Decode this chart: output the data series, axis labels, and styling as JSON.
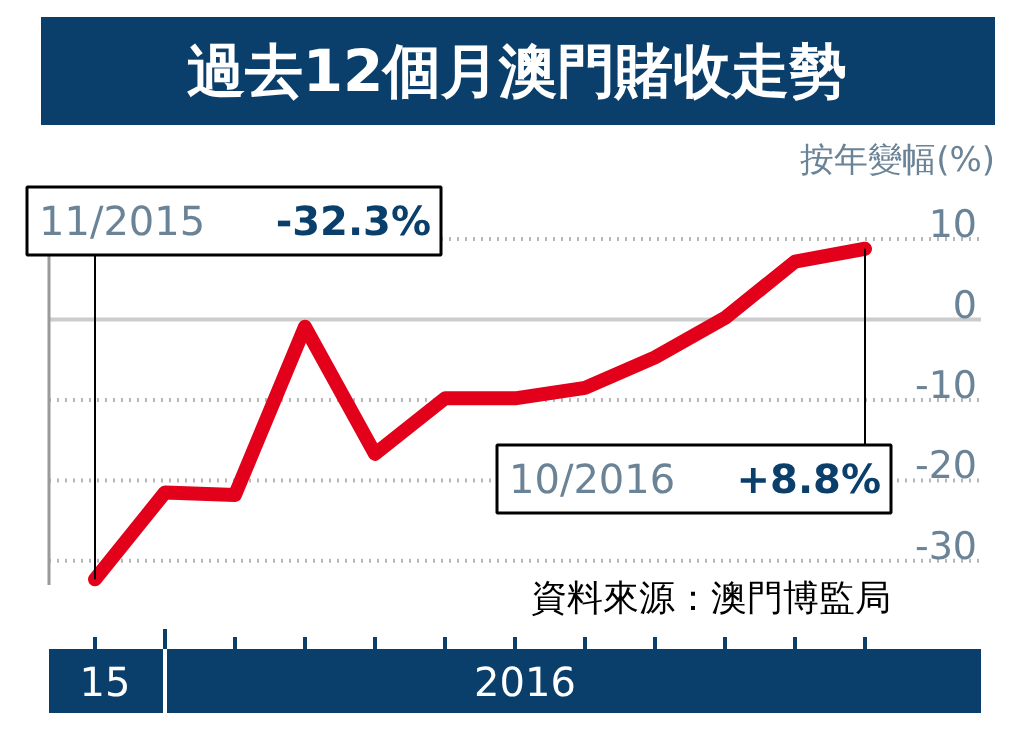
{
  "chart_data": {
    "type": "line",
    "title": "過去12個月澳門賭收走勢",
    "ylabel": "按年變幅(%)",
    "categories": [
      null,
      null,
      null,
      null,
      null,
      null,
      null,
      null,
      null,
      null,
      null,
      null
    ],
    "series": [
      {
        "color": "#e3001b",
        "values": [
          -32.3,
          -21.5,
          -21.8,
          -0.9,
          -16.7,
          -9.8,
          -9.8,
          -8.5,
          -4.7,
          0.2,
          7.2,
          8.8
        ]
      }
    ],
    "value_labels": [
      "11/2015 -32.3%",
      null,
      null,
      null,
      null,
      null,
      null,
      null,
      null,
      null,
      null,
      "10/2016 +8.8%"
    ],
    "ylim": [
      -33,
      12
    ],
    "yticks": [
      -30,
      -20,
      -10,
      0,
      10
    ],
    "grid": "y",
    "line_style": "solid",
    "ref_lines": [
      {
        "axis": "y",
        "value": 0,
        "color": "#cccccc",
        "line_style": "solid"
      }
    ],
    "annotations": [
      "15",
      "2016",
      "資料來源：澳門博監局"
    ]
  }
}
